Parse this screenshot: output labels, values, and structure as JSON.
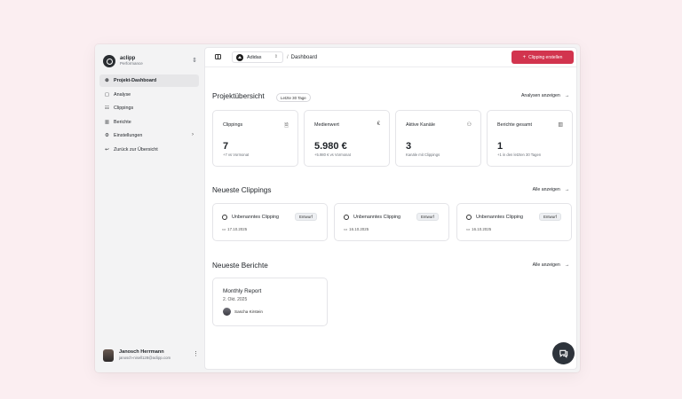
{
  "brand": {
    "name": "aclipp",
    "subtitle": "Performance",
    "switch_icon": "chevron-updown-icon"
  },
  "sidebar": {
    "items": [
      {
        "label": "Projekt-Dashboard",
        "icon": "⊚"
      },
      {
        "label": "Analyse",
        "icon": "▢"
      },
      {
        "label": "Clippings",
        "icon": "☷"
      },
      {
        "label": "Berichte",
        "icon": "▥"
      },
      {
        "label": "Einstellungen",
        "icon": "⚙"
      },
      {
        "label": "Zurück zur Übersicht",
        "icon": "↩"
      }
    ],
    "chevron": "›"
  },
  "user": {
    "name": "Janosch Herrmann",
    "email": "janosch-nisell128@aclipp.com",
    "more": "⋮"
  },
  "topbar": {
    "project": "Adidas",
    "breadcrumb": "Dashboard",
    "separator": "/",
    "cta_plus": "+",
    "cta_label": "Clipping erstellen",
    "accent": "#d2344e"
  },
  "overview": {
    "title": "Projektübersicht",
    "period": "Letzte 30 Tage",
    "link": "Analysen anzeigen",
    "arrow": "→",
    "stats": [
      {
        "label": "Clippings",
        "icon": "🗎",
        "value": "7",
        "note": "+7 vs Vormonat"
      },
      {
        "label": "Medienwert",
        "icon": "€",
        "value": "5.980 €",
        "note": "+5.980 € vs Vormonat"
      },
      {
        "label": "Aktive Kanäle",
        "icon": "⚇",
        "value": "3",
        "note": "Kanäle mit Clippings"
      },
      {
        "label": "Berichte gesamt",
        "icon": "▥",
        "value": "1",
        "note": "+1 in den letzten 30 Tagen"
      }
    ]
  },
  "clippings": {
    "title": "Neueste Clippings",
    "link": "Alle anzeigen",
    "arrow": "→",
    "items": [
      {
        "title": "Unbenanntes Clipping",
        "status": "Entwurf",
        "date": "17.10.2025"
      },
      {
        "title": "Unbenanntes Clipping",
        "status": "Entwurf",
        "date": "16.10.2025"
      },
      {
        "title": "Unbenanntes Clipping",
        "status": "Entwurf",
        "date": "16.10.2025"
      }
    ],
    "calendar_icon": "🗓"
  },
  "reports": {
    "title": "Neueste Berichte",
    "link": "Alle anzeigen",
    "arrow": "→",
    "items": [
      {
        "title": "Monthly Report",
        "date": "2. Okt. 2025",
        "author": "Sascha Kirstein"
      }
    ]
  }
}
